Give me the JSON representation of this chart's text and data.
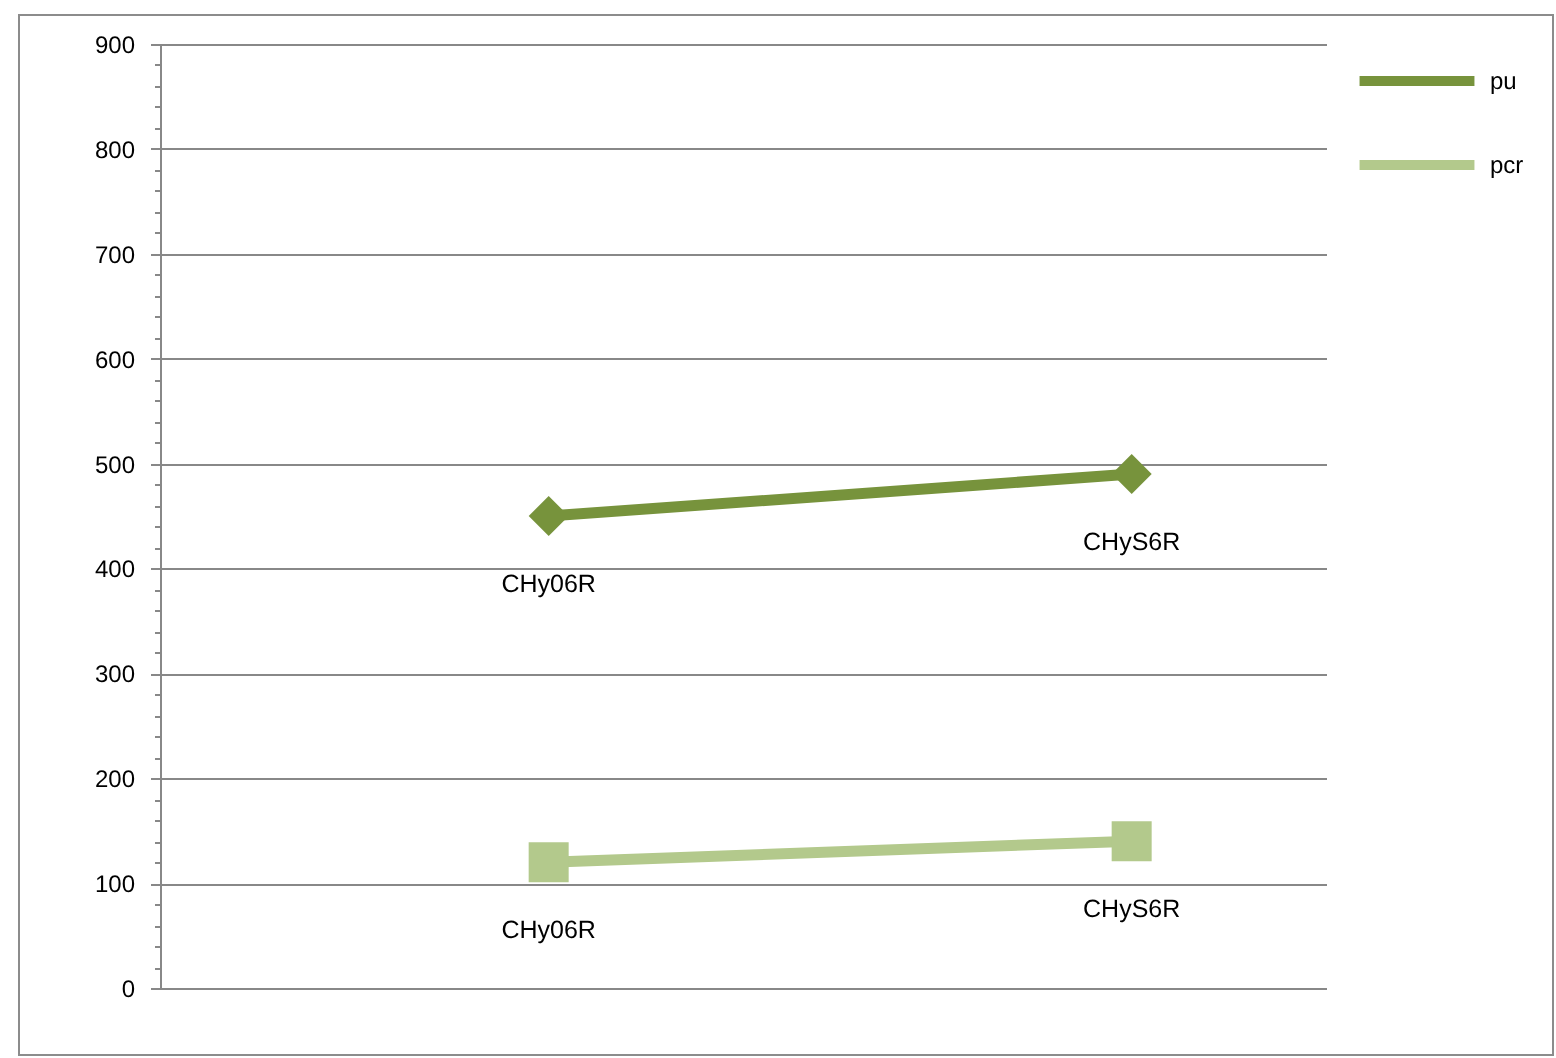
{
  "chart_data": {
    "type": "line",
    "categories": [
      null,
      null
    ],
    "series": [
      {
        "name": "pu",
        "color": "#77933c",
        "marker": "diamond",
        "values": [
          450,
          490
        ],
        "value_labels": [
          "CHy06R",
          "CHyS6R"
        ]
      },
      {
        "name": "pcr",
        "color": "#b3c98c",
        "marker": "square",
        "values": [
          120,
          140
        ],
        "value_labels": [
          "CHy06R",
          "CHyS6R"
        ]
      }
    ],
    "ylim": [
      0,
      900
    ],
    "yticks": [
      0,
      {
        "value": 20,
        "label": null
      },
      {
        "value": 40,
        "label": null
      },
      {
        "value": 60,
        "label": null
      },
      {
        "value": 80,
        "label": null
      },
      100,
      {
        "value": 120,
        "label": null
      },
      {
        "value": 140,
        "label": null
      },
      {
        "value": 160,
        "label": null
      },
      {
        "value": 180,
        "label": null
      },
      200,
      {
        "value": 220,
        "label": null
      },
      {
        "value": 240,
        "label": null
      },
      {
        "value": 260,
        "label": null
      },
      {
        "value": 280,
        "label": null
      },
      300,
      {
        "value": 320,
        "label": null
      },
      {
        "value": 340,
        "label": null
      },
      {
        "value": 360,
        "label": null
      },
      {
        "value": 380,
        "label": null
      },
      400,
      {
        "value": 420,
        "label": null
      },
      {
        "value": 440,
        "label": null
      },
      {
        "value": 460,
        "label": null
      },
      {
        "value": 480,
        "label": null
      },
      500,
      {
        "value": 520,
        "label": null
      },
      {
        "value": 540,
        "label": null
      },
      {
        "value": 560,
        "label": null
      },
      {
        "value": 580,
        "label": null
      },
      600,
      {
        "value": 620,
        "label": null
      },
      {
        "value": 640,
        "label": null
      },
      {
        "value": 660,
        "label": null
      },
      {
        "value": 680,
        "label": null
      },
      700,
      {
        "value": 720,
        "label": null
      },
      {
        "value": 740,
        "label": null
      },
      {
        "value": 760,
        "label": null
      },
      {
        "value": 780,
        "label": null
      },
      800,
      {
        "value": 820,
        "label": null
      },
      {
        "value": 840,
        "label": null
      },
      {
        "value": 860,
        "label": null
      },
      {
        "value": 880,
        "label": null
      },
      900
    ],
    "grid": "y",
    "legend": "top right",
    "line_style": "solid",
    "tick_labels": "y"
  }
}
